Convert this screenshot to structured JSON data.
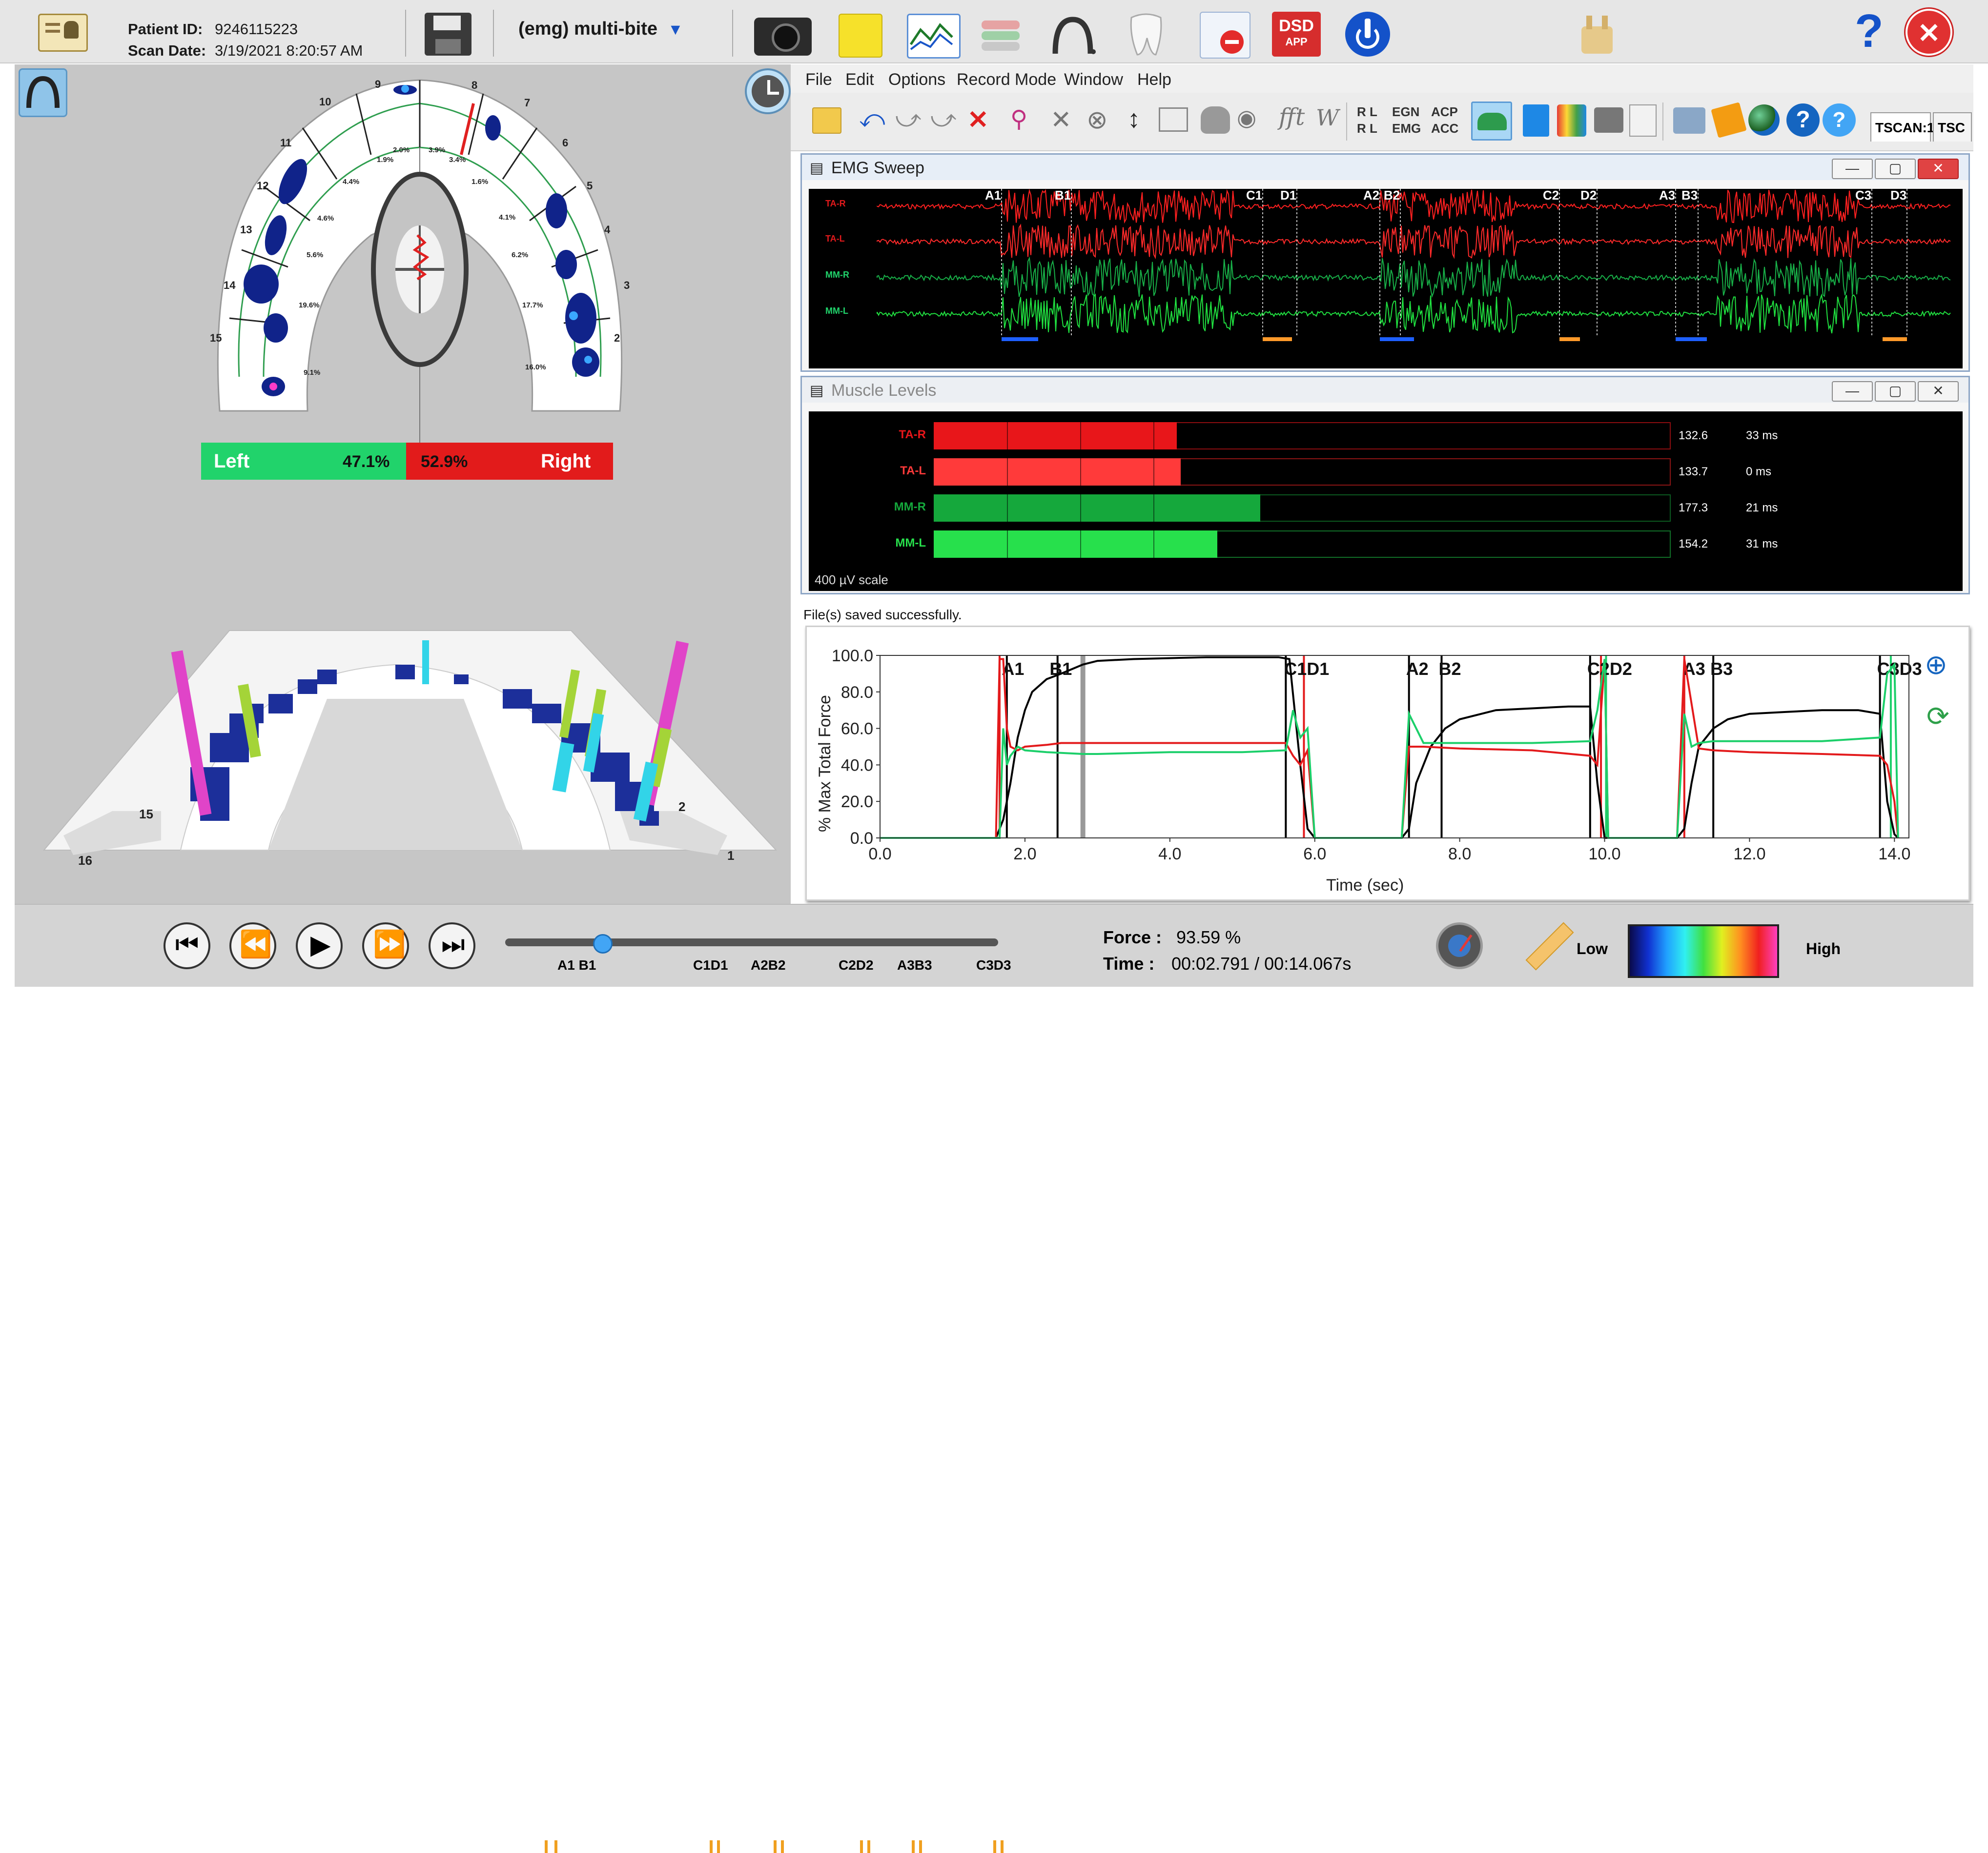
{
  "header": {
    "patient_id_label": "Patient ID:",
    "patient_id": "9246115223",
    "scan_date_label": "Scan Date:",
    "scan_date": "3/19/2021 8:20:57 AM",
    "recording_name": "(emg) multi-bite",
    "help_glyph": "?",
    "close_glyph": "✕",
    "dsd_text_1": "DSD",
    "dsd_text_2": "APP"
  },
  "menu": {
    "items": [
      "File",
      "Edit",
      "Options",
      "Record Mode",
      "Window",
      "Help"
    ]
  },
  "toolbar": {
    "egn": "EGN",
    "emg": "EMG",
    "acp": "ACP",
    "acc": "ACC",
    "rl_1": "R L",
    "rl_2": "R L",
    "fft": "fft",
    "w": "W",
    "tab1": "TSCAN:1",
    "tab2": "TSC"
  },
  "arch": {
    "tooth_numbers": [
      "1",
      "2",
      "3",
      "4",
      "5",
      "6",
      "7",
      "8",
      "9",
      "10",
      "11",
      "12",
      "13",
      "14",
      "15",
      "16"
    ],
    "percents": [
      "2.0%",
      "3.9%",
      "1.9%",
      "3.4%",
      "4.4%",
      "1.6%",
      "4.6%",
      "4.1%",
      "5.6%",
      "6.2%",
      "19.6%",
      "17.7%",
      "9.1%",
      "16.0%"
    ],
    "left_label": "Left",
    "left_pct": "47.1%",
    "right_pct": "52.9%",
    "right_label": "Right"
  },
  "view3d": {
    "labels": [
      "15",
      "16",
      "2",
      "1"
    ]
  },
  "emg_sweep": {
    "title": "EMG Sweep",
    "channels": [
      "TA-R",
      "TA-L",
      "MM-R",
      "MM-L"
    ],
    "markers": [
      "A1",
      "B1",
      "C1",
      "D1",
      "A2",
      "B2",
      "C2",
      "D2",
      "A3",
      "B3",
      "C3",
      "D3"
    ]
  },
  "muscle_levels": {
    "title": "Muscle Levels",
    "scale": "400 µV scale",
    "rows": [
      {
        "name": "TA-R",
        "value": "132.6",
        "ms": "33 ms",
        "level": 0.33,
        "color": "#e8161a",
        "dark": "#8b0d10"
      },
      {
        "name": "TA-L",
        "value": "133.7",
        "ms": "0 ms",
        "level": 0.335,
        "color": "#ff3a3a",
        "dark": "#8b1515"
      },
      {
        "name": "MM-R",
        "value": "177.3",
        "ms": "21 ms",
        "level": 0.443,
        "color": "#15a83c",
        "dark": "#0c5a20"
      },
      {
        "name": "MM-L",
        "value": "154.2",
        "ms": "31 ms",
        "level": 0.385,
        "color": "#27e04c",
        "dark": "#117028"
      }
    ]
  },
  "status": {
    "message": "File(s) saved successfully."
  },
  "force_chart": {
    "ylabel": "% Max Total Force",
    "xlabel": "Time (sec)",
    "yticks": [
      "0.0",
      "20.0",
      "40.0",
      "60.0",
      "80.0",
      "100.0"
    ],
    "xticks": [
      "0.0",
      "2.0",
      "4.0",
      "6.0",
      "8.0",
      "10.0",
      "12.0",
      "14.0"
    ],
    "marker_labels": [
      "A1",
      "B1",
      "C1D1",
      "A2",
      "B2",
      "C2D2",
      "A3",
      "B3",
      "C3D3"
    ]
  },
  "chart_data": {
    "type": "line",
    "xlabel": "Time (sec)",
    "ylabel": "% Max Total Force",
    "xlim": [
      0,
      14.2
    ],
    "ylim": [
      0,
      100
    ],
    "series": [
      {
        "color": "#000000",
        "x": [
          0,
          1.6,
          1.7,
          1.8,
          1.9,
          2.0,
          2.1,
          2.3,
          2.5,
          2.8,
          3.0,
          3.5,
          4.0,
          4.5,
          5.0,
          5.5,
          5.65,
          5.8,
          5.9,
          6.0,
          7.2,
          7.3,
          7.4,
          7.6,
          7.8,
          8.0,
          8.5,
          9.0,
          9.5,
          9.8,
          9.9,
          10.0,
          11.0,
          11.1,
          11.2,
          11.3,
          11.5,
          11.7,
          12.0,
          12.5,
          13.0,
          13.5,
          13.8,
          13.9,
          14.0,
          14.05
        ],
        "y": [
          0,
          0,
          10,
          30,
          55,
          70,
          80,
          87,
          90,
          95,
          97,
          98,
          98.5,
          99,
          99,
          99,
          98,
          40,
          5,
          0,
          0,
          5,
          30,
          50,
          60,
          65,
          70,
          71,
          72,
          72,
          30,
          0,
          0,
          5,
          30,
          50,
          60,
          65,
          68,
          69,
          70,
          70,
          68,
          20,
          2,
          0
        ]
      },
      {
        "color": "#e31a1c",
        "x": [
          0,
          1.6,
          1.65,
          1.7,
          1.75,
          1.8,
          1.9,
          2.0,
          2.3,
          2.5,
          2.8,
          3.0,
          4.0,
          5.0,
          5.6,
          5.7,
          5.8,
          5.9,
          6.0,
          7.2,
          7.3,
          7.5,
          8.0,
          9.0,
          9.8,
          9.9,
          10.0,
          10.05,
          11.0,
          11.1,
          11.3,
          11.5,
          12.0,
          13.0,
          13.8,
          13.9,
          14.0,
          14.05
        ],
        "y": [
          0,
          0,
          98,
          98,
          60,
          50,
          48,
          50,
          51,
          52,
          52,
          52,
          52,
          52,
          52,
          45,
          40,
          48,
          0,
          0,
          50,
          50,
          49,
          48,
          45,
          40,
          98,
          0,
          0,
          98,
          49,
          48,
          47,
          46,
          45,
          40,
          20,
          0
        ]
      },
      {
        "color": "#1ccf6a",
        "x": [
          0,
          1.65,
          1.7,
          1.75,
          1.8,
          1.9,
          2.0,
          2.3,
          2.8,
          3.0,
          4.0,
          5.0,
          5.6,
          5.7,
          5.8,
          5.9,
          6.0,
          7.2,
          7.3,
          7.5,
          8.0,
          9.0,
          9.8,
          9.9,
          10.0,
          10.05,
          11.0,
          11.1,
          11.2,
          11.3,
          11.5,
          12.0,
          13.0,
          13.8,
          13.9,
          14.0,
          14.05
        ],
        "y": [
          0,
          0,
          60,
          40,
          45,
          50,
          48,
          47,
          46,
          46,
          47,
          47,
          48,
          70,
          55,
          60,
          0,
          0,
          68,
          52,
          52,
          52,
          53,
          70,
          98,
          0,
          0,
          68,
          50,
          52,
          53,
          53,
          53,
          55,
          90,
          95,
          0
        ]
      }
    ],
    "vlines": [
      {
        "x": 1.65,
        "color": "#e31a1c"
      },
      {
        "x": 1.75,
        "color": "#000"
      },
      {
        "x": 2.45,
        "color": "#000"
      },
      {
        "x": 2.8,
        "color": "#999"
      },
      {
        "x": 5.6,
        "color": "#000"
      },
      {
        "x": 5.85,
        "color": "#e31a1c"
      },
      {
        "x": 7.3,
        "color": "#000"
      },
      {
        "x": 7.75,
        "color": "#000"
      },
      {
        "x": 9.8,
        "color": "#000"
      },
      {
        "x": 9.95,
        "color": "#e31a1c"
      },
      {
        "x": 10.02,
        "color": "#1ccf6a"
      },
      {
        "x": 11.1,
        "color": "#e31a1c"
      },
      {
        "x": 11.5,
        "color": "#000"
      },
      {
        "x": 13.8,
        "color": "#000"
      },
      {
        "x": 13.95,
        "color": "#1ccf6a"
      }
    ]
  },
  "playback": {
    "force_label": "Force :",
    "force_value": "93.59 %",
    "time_label": "Time :",
    "time_value": "00:02.791 / 00:14.067s",
    "legend_low": "Low",
    "legend_high": "High",
    "progress": 0.198,
    "timeline_labels": [
      "A1 B1",
      "C1D1",
      "A2B2",
      "C2D2",
      "A3B3",
      "C3D3"
    ]
  }
}
